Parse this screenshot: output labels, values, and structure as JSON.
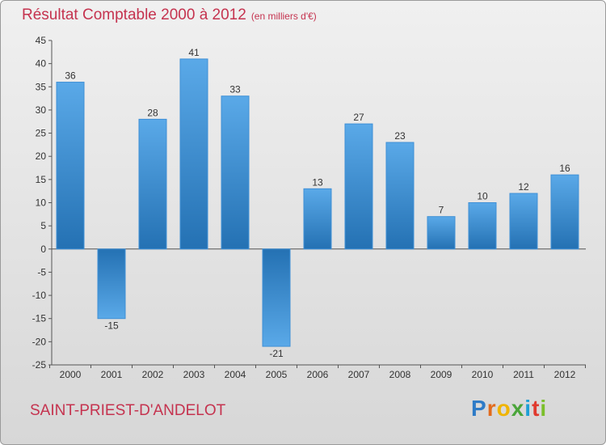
{
  "header": {
    "title": "Résultat Comptable 2000 à 2012",
    "subtitle": "(en milliers d'€)"
  },
  "footer": {
    "city": "SAINT-PRIEST-D'ANDELOT",
    "logo": "Proxiti"
  },
  "colors": {
    "bar_light": "#5aa9e8",
    "bar_dark": "#2471b3",
    "title": "#c5334f"
  },
  "chart_data": {
    "type": "bar",
    "title": "Résultat Comptable 2000 à 2012",
    "subtitle": "(en milliers d'€)",
    "categories": [
      "2000",
      "2001",
      "2002",
      "2003",
      "2004",
      "2005",
      "2006",
      "2007",
      "2008",
      "2009",
      "2010",
      "2011",
      "2012"
    ],
    "values": [
      36,
      -15,
      28,
      41,
      33,
      -21,
      13,
      27,
      23,
      7,
      10,
      12,
      16
    ],
    "ylim": [
      -25,
      45
    ],
    "yticks": [
      45,
      40,
      35,
      30,
      25,
      20,
      15,
      10,
      5,
      0,
      -5,
      -10,
      -15,
      -20,
      -25
    ],
    "ytick_labels": [
      "45",
      "40",
      "35",
      "30",
      "25",
      "20",
      "15",
      "10",
      "5",
      "0",
      "-5",
      "-10",
      "-15",
      "-20",
      "-25"
    ],
    "grid": false,
    "legend": "none"
  }
}
